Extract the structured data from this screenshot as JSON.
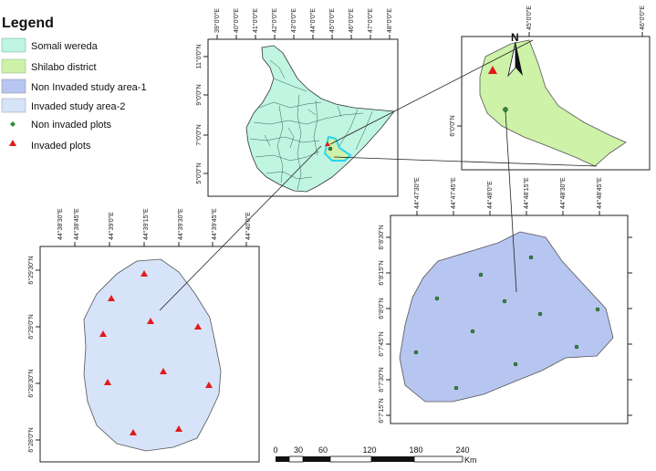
{
  "legend": {
    "title": "Legend",
    "items": [
      {
        "label": "Somali wereda",
        "fill": "#bff5e1",
        "kind": "box"
      },
      {
        "label": "Shilabo district",
        "fill": "#cdf2a8",
        "kind": "box"
      },
      {
        "label": "Non Invaded  study area-1",
        "fill": "#b7c6f0",
        "kind": "box"
      },
      {
        "label": "Invaded study area-2",
        "fill": "#d6e3f8",
        "kind": "box"
      },
      {
        "label": "Non invaded  plots",
        "fill": "#2e8b3e",
        "kind": "dot"
      },
      {
        "label": " Invaded plots",
        "fill": "#e11a1a",
        "kind": "triangle"
      }
    ]
  },
  "colors": {
    "somali": "#bff5e1",
    "shilabo": "#cdf2a8",
    "area1": "#b7c6f0",
    "area2": "#d6e3f8",
    "non_invaded_marker": "#2e8b3e",
    "invaded_marker": "#e11a1a",
    "district_outline": "#2ad3f0"
  },
  "regional_map": {
    "top_ticks": [
      "39°0'0\"E",
      "40°0'0\"E",
      "41°0'0\"E",
      "42°0'0\"E",
      "43°0'0\"E",
      "44°0'0\"E",
      "45°0'0\"E",
      "46°0'0\"E",
      "47°0'0\"E",
      "48°0'0\"E"
    ],
    "left_ticks": [
      "11°0'0\"N",
      "9°0'0\"N",
      "7°0'0\"N",
      "5°0'0\"N"
    ]
  },
  "district_map": {
    "top_ticks": [
      "45°0'0\"E",
      "46°0'0\"E"
    ],
    "left_ticks": [
      "6°0'0\"N"
    ],
    "north_label": "N"
  },
  "area2_map": {
    "top_ticks": [
      "44°38'30\"E",
      "44°38'45\"E",
      "44°39'0\"E",
      "44°39'15\"E",
      "44°39'30\"E",
      "44°39'45\"E",
      "44°40'0\"E"
    ],
    "left_ticks": [
      "6°29'30\"N",
      "6°29'0\"N",
      "6°28'30\"N",
      "6°28'0\"N"
    ]
  },
  "area1_map": {
    "top_ticks": [
      "44°47'30\"E",
      "44°47'45\"E",
      "44°48'0\"E",
      "44°48'15\"E",
      "44°48'30\"E",
      "44°48'45\"E"
    ],
    "left_ticks": [
      "6°8'30\"N",
      "6°8'15\"N",
      "6°8'0\"N",
      "6°7'45\"N",
      "6°7'30\"N",
      "6°7'15\"N"
    ]
  },
  "scale_bar": {
    "labels": [
      "0",
      "30",
      "60",
      "120",
      "180",
      "240"
    ],
    "unit": "Km"
  }
}
